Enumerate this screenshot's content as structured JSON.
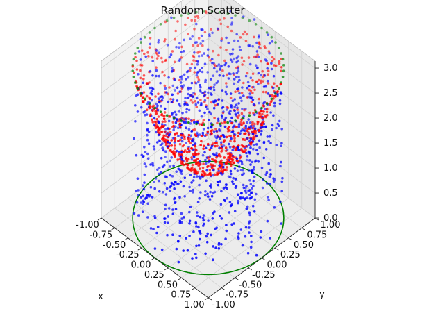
{
  "chart_data": {
    "type": "scatter",
    "projection": "3d",
    "title": "Random Scatter",
    "xlabel": "x",
    "ylabel": "y",
    "zlabel": "",
    "xlim": [
      -1.0,
      1.0
    ],
    "ylim": [
      -1.0,
      1.0
    ],
    "zlim": [
      0.0,
      3.14
    ],
    "grid": true,
    "x_ticks": [
      "-1.00",
      "-0.75",
      "-0.50",
      "-0.25",
      "0.00",
      "0.25",
      "0.50",
      "0.75",
      "1.00"
    ],
    "y_ticks": [
      "-1.00",
      "-0.75",
      "-0.50",
      "-0.25",
      "0.00",
      "0.25",
      "0.50",
      "0.75",
      "1.00"
    ],
    "z_ticks": [
      "0.0",
      "0.5",
      "1.0",
      "1.5",
      "2.0",
      "2.5",
      "3.0"
    ],
    "series": [
      {
        "kind": "points",
        "color": "#0000ff",
        "description_of_distribution": "uniform random points inside unit disc, z uniform in [0, 3.14]",
        "x_range": [
          -1.0,
          1.0
        ],
        "y_range": [
          -1.0,
          1.0
        ],
        "z_range": [
          0.0,
          3.14
        ],
        "count": 1000
      },
      {
        "kind": "points",
        "color": "#ff0000",
        "description_of_distribution": "points on paraboloid z = 1 + 2(x^2 + y^2) within unit disc",
        "x_range": [
          -1.0,
          1.0
        ],
        "y_range": [
          -1.0,
          1.0
        ],
        "z_range": [
          1.0,
          3.0
        ],
        "count": 700
      },
      {
        "kind": "points",
        "color": "#008000",
        "description_of_distribution": "points on unit circle at z = 3.0",
        "radius": 1.0,
        "z": 3.0,
        "count": 60
      },
      {
        "kind": "line",
        "color": "#008000",
        "description_of_distribution": "unit circle at z = 0",
        "radius": 1.0,
        "z": 0.0
      }
    ]
  }
}
